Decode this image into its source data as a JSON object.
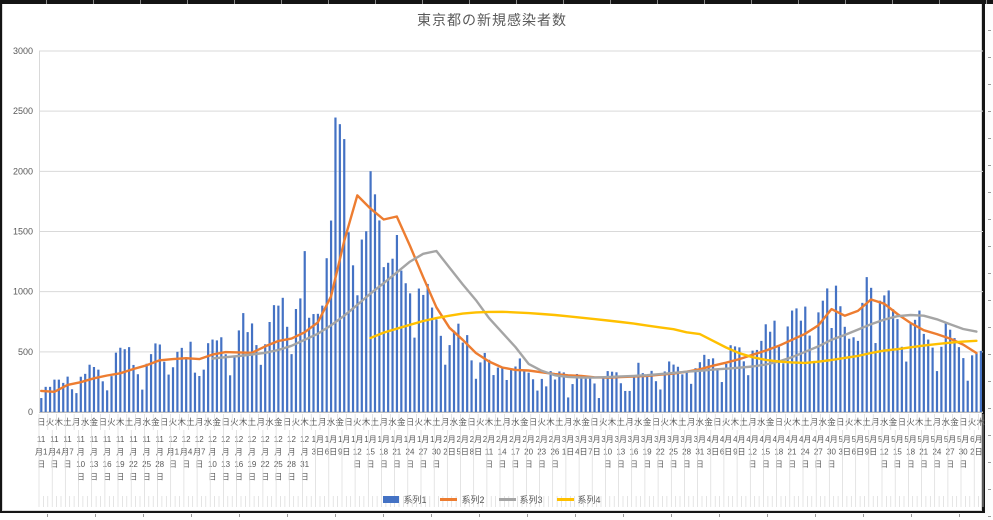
{
  "title": "東京都の新規感染者数",
  "legend": [
    {
      "label": "系列1",
      "color": "#4472C4",
      "marker": "bar"
    },
    {
      "label": "系列2",
      "color": "#ED7D31",
      "marker": "line"
    },
    {
      "label": "系列3",
      "color": "#A5A5A5",
      "marker": "line"
    },
    {
      "label": "系列4",
      "color": "#FFC000",
      "marker": "line"
    }
  ],
  "colors": {
    "bar": "#4472C4",
    "line2": "#ED7D31",
    "line3": "#A5A5A5",
    "line4": "#FFC000",
    "gridline": "#D9D9D9",
    "axis_text": "#595959",
    "axis_line": "#BFBFBF"
  },
  "chart_data": {
    "type": "combo-bar-line",
    "title": "東京都の新規感染者数",
    "n_categories": 215,
    "grid": true,
    "legend_position": "bottom",
    "y_axis": {
      "min": 0,
      "max": 3000,
      "step": 500,
      "tick_labels": [
        "0",
        "500",
        "1000",
        "1500",
        "2000",
        "2500",
        "3000"
      ]
    },
    "x_axis": {
      "weekday_level": {
        "interval": 2,
        "cycle": [
          "日",
          "火",
          "木",
          "土",
          "月",
          "水",
          "金"
        ]
      },
      "date_level": {
        "interval": 3,
        "labels": [
          [
            "11",
            "月1",
            "日"
          ],
          [
            "11",
            "月4",
            "日"
          ],
          [
            "11",
            "月7",
            "日"
          ],
          [
            "11",
            "月",
            "10",
            "日"
          ],
          [
            "11",
            "月",
            "13",
            "日"
          ],
          [
            "11",
            "月",
            "16",
            "日"
          ],
          [
            "11",
            "月",
            "19",
            "日"
          ],
          [
            "11",
            "月",
            "22",
            "日"
          ],
          [
            "11",
            "月",
            "25",
            "日"
          ],
          [
            "11",
            "月",
            "28",
            "日"
          ],
          [
            "12",
            "月1",
            "日"
          ],
          [
            "12",
            "月4",
            "日"
          ],
          [
            "12",
            "月7",
            "日"
          ],
          [
            "12",
            "月",
            "10",
            "日"
          ],
          [
            "12",
            "月",
            "13",
            "日"
          ],
          [
            "12",
            "月",
            "16",
            "日"
          ],
          [
            "12",
            "月",
            "19",
            "日"
          ],
          [
            "12",
            "月",
            "22",
            "日"
          ],
          [
            "12",
            "月",
            "25",
            "日"
          ],
          [
            "12",
            "月",
            "28",
            "日"
          ],
          [
            "12",
            "月",
            "31",
            "日"
          ],
          [
            "1月",
            "3日"
          ],
          [
            "1月",
            "6日"
          ],
          [
            "1月",
            "9日"
          ],
          [
            "1月",
            "12",
            "日"
          ],
          [
            "1月",
            "15",
            "日"
          ],
          [
            "1月",
            "18",
            "日"
          ],
          [
            "1月",
            "21",
            "日"
          ],
          [
            "1月",
            "24",
            "日"
          ],
          [
            "1月",
            "27",
            "日"
          ],
          [
            "1月",
            "30",
            "日"
          ],
          [
            "2月",
            "2日"
          ],
          [
            "2月",
            "5日"
          ],
          [
            "2月",
            "8日"
          ],
          [
            "2月",
            "11",
            "日"
          ],
          [
            "2月",
            "14",
            "日"
          ],
          [
            "2月",
            "17",
            "日"
          ],
          [
            "2月",
            "20",
            "日"
          ],
          [
            "2月",
            "23",
            "日"
          ],
          [
            "2月",
            "26",
            "日"
          ],
          [
            "3月",
            "1日"
          ],
          [
            "3月",
            "4日"
          ],
          [
            "3月",
            "7日"
          ],
          [
            "3月",
            "10",
            "日"
          ],
          [
            "3月",
            "13",
            "日"
          ],
          [
            "3月",
            "16",
            "日"
          ],
          [
            "3月",
            "19",
            "日"
          ],
          [
            "3月",
            "22",
            "日"
          ],
          [
            "3月",
            "25",
            "日"
          ],
          [
            "3月",
            "28",
            "日"
          ],
          [
            "3月",
            "31",
            "日"
          ],
          [
            "4月",
            "3日"
          ],
          [
            "4月",
            "6日"
          ],
          [
            "4月",
            "9日"
          ],
          [
            "4月",
            "12",
            "日"
          ],
          [
            "4月",
            "15",
            "日"
          ],
          [
            "4月",
            "18",
            "日"
          ],
          [
            "4月",
            "21",
            "日"
          ],
          [
            "4月",
            "24",
            "日"
          ],
          [
            "4月",
            "27",
            "日"
          ],
          [
            "4月",
            "30",
            "日"
          ],
          [
            "5月",
            "3日"
          ],
          [
            "5月",
            "6日"
          ],
          [
            "5月",
            "9日"
          ],
          [
            "5月",
            "12",
            "日"
          ],
          [
            "5月",
            "15",
            "日"
          ],
          [
            "5月",
            "18",
            "日"
          ],
          [
            "5月",
            "21",
            "日"
          ],
          [
            "5月",
            "24",
            "日"
          ],
          [
            "5月",
            "27",
            "日"
          ],
          [
            "5月",
            "30",
            "日"
          ],
          [
            "6月",
            "2日"
          ]
        ]
      }
    },
    "series": [
      {
        "name": "系列1",
        "type": "bar",
        "color": "#4472C4",
        "sample_interval": 1,
        "values": [
          116,
          209,
          209,
          269,
          269,
          242,
          294,
          189,
          157,
          293,
          317,
          393,
          374,
          352,
          255,
          180,
          298,
          493,
          534,
          522,
          539,
          391,
          314,
          186,
          401,
          481,
          570,
          561,
          418,
          311,
          372,
          500,
          533,
          449,
          584,
          327,
          299,
          352,
          572,
          602,
          595,
          621,
          480,
          305,
          460,
          678,
          822,
          664,
          736,
          556,
          392,
          563,
          748,
          888,
          884,
          949,
          708,
          481,
          856,
          944,
          1337,
          783,
          814,
          816,
          884,
          1278,
          1591,
          2447,
          2392,
          2268,
          1494,
          1219,
          970,
          1433,
          1502,
          2001,
          1809,
          1592,
          1204,
          1240,
          1274,
          1471,
          1175,
          1070,
          986,
          618,
          1026,
          973,
          1064,
          868,
          769,
          633,
          393,
          556,
          676,
          734,
          577,
          639,
          429,
          276,
          412,
          491,
          434,
          307,
          369,
          371,
          266,
          350,
          378,
          445,
          353,
          327,
          272,
          178,
          275,
          213,
          340,
          270,
          337,
          329,
          121,
          232,
          316,
          279,
          301,
          293,
          237,
          116,
          290,
          340,
          335,
          330,
          239,
          175,
          175,
          300,
          409,
          323,
          303,
          342,
          256,
          187,
          337,
          420,
          394,
          376,
          313,
          333,
          234,
          364,
          414,
          475,
          440,
          446,
          355,
          249,
          399,
          555,
          545,
          537,
          421,
          306,
          510,
          516,
          591,
          729,
          667,
          759,
          543,
          405,
          711,
          843,
          861,
          759,
          876,
          635,
          425,
          828,
          925,
          1027,
          698,
          1050,
          879,
          708,
          609,
          621,
          591,
          907,
          1121,
          1032,
          573,
          925,
          969,
          1010,
          854,
          772,
          542,
          419,
          732,
          766,
          843,
          649,
          602,
          535,
          340,
          542,
          743,
          684,
          614,
          539,
          448,
          260,
          471,
          487,
          508
        ]
      },
      {
        "name": "系列2",
        "type": "line",
        "color": "#ED7D31",
        "sample_interval": 3,
        "values": [
          175,
          168,
          225,
          248,
          280,
          303,
          322,
          357,
          388,
          430,
          440,
          447,
          440,
          477,
          498,
          495,
          492,
          545,
          590,
          610,
          662,
          745,
          960,
          1420,
          1800,
          1690,
          1600,
          1625,
          1380,
          1120,
          870,
          700,
          600,
          490,
          420,
          370,
          350,
          345,
          330,
          315,
          305,
          300,
          288,
          285,
          290,
          295,
          300,
          310,
          320,
          335,
          355,
          385,
          410,
          440,
          475,
          510,
          550,
          600,
          650,
          720,
          855,
          800,
          840,
          935,
          900,
          814,
          740,
          680,
          647,
          610,
          560,
          490
        ]
      },
      {
        "name": "系列3",
        "type": "line",
        "color": "#A5A5A5",
        "sample_interval": 3,
        "values": [
          null,
          null,
          null,
          null,
          null,
          null,
          null,
          null,
          null,
          null,
          null,
          null,
          null,
          445,
          455,
          465,
          478,
          492,
          515,
          550,
          600,
          650,
          720,
          800,
          890,
          985,
          1070,
          1160,
          1250,
          1315,
          1338,
          1200,
          1060,
          930,
          780,
          660,
          540,
          400,
          342,
          305,
          292,
          286,
          286,
          290,
          296,
          300,
          306,
          315,
          325,
          335,
          342,
          352,
          360,
          368,
          378,
          395,
          420,
          455,
          500,
          545,
          600,
          640,
          685,
          730,
          768,
          796,
          806,
          800,
          770,
          730,
          690,
          668
        ]
      },
      {
        "name": "系列4",
        "type": "line",
        "color": "#FFC000",
        "sample_interval": 3,
        "values": [
          null,
          null,
          null,
          null,
          null,
          null,
          null,
          null,
          null,
          null,
          null,
          null,
          null,
          null,
          null,
          null,
          null,
          null,
          null,
          null,
          null,
          null,
          null,
          null,
          null,
          615,
          660,
          692,
          725,
          756,
          780,
          800,
          818,
          828,
          832,
          833,
          828,
          822,
          814,
          806,
          795,
          784,
          772,
          760,
          748,
          735,
          718,
          703,
          688,
          662,
          647,
          592,
          536,
          489,
          455,
          433,
          420,
          412,
          408,
          418,
          432,
          450,
          466,
          490,
          510,
          522,
          538,
          552,
          564,
          576,
          585,
          592
        ]
      }
    ]
  }
}
